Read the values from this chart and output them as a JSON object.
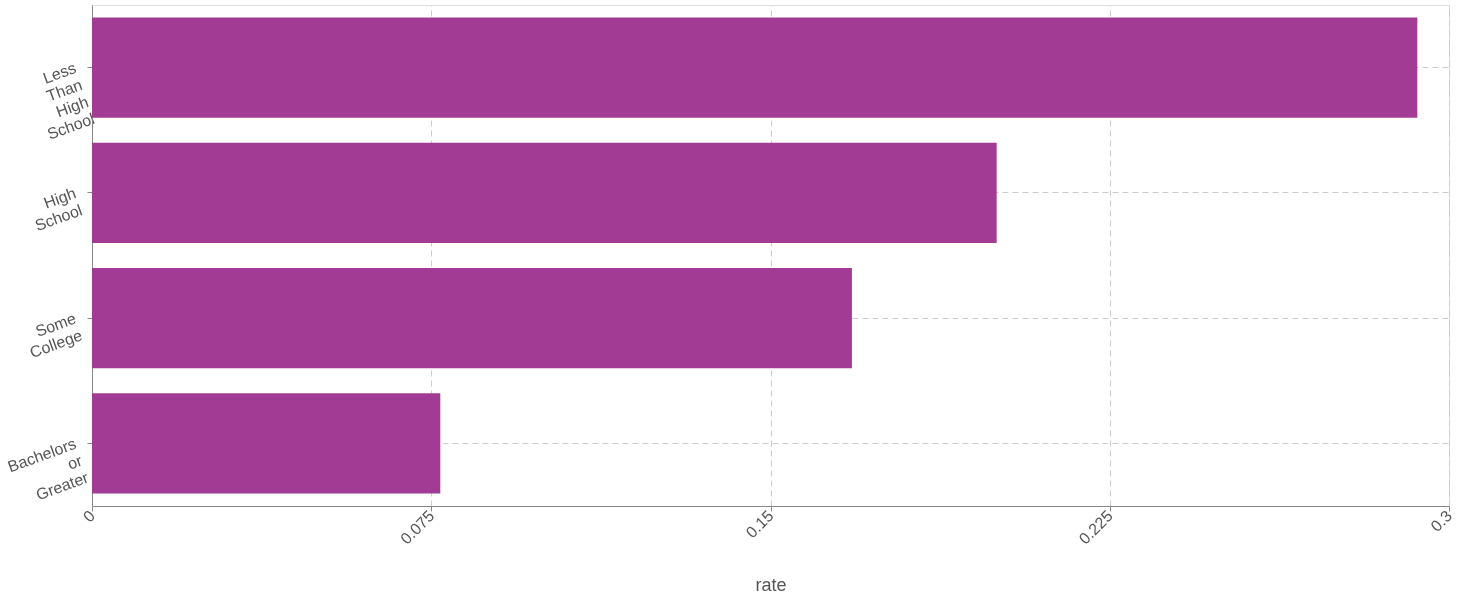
{
  "chart_data": {
    "type": "bar",
    "orientation": "horizontal",
    "categories": [
      "Less Than High School",
      "High School",
      "Some College",
      "Bachelors or Greater"
    ],
    "values": [
      0.293,
      0.2,
      0.168,
      0.077
    ],
    "color": "#a23b93",
    "xlabel": "rate",
    "xlim": [
      0,
      0.3
    ],
    "xticks": [
      0,
      0.075,
      0.15,
      0.225,
      0.3
    ],
    "grid": true
  }
}
